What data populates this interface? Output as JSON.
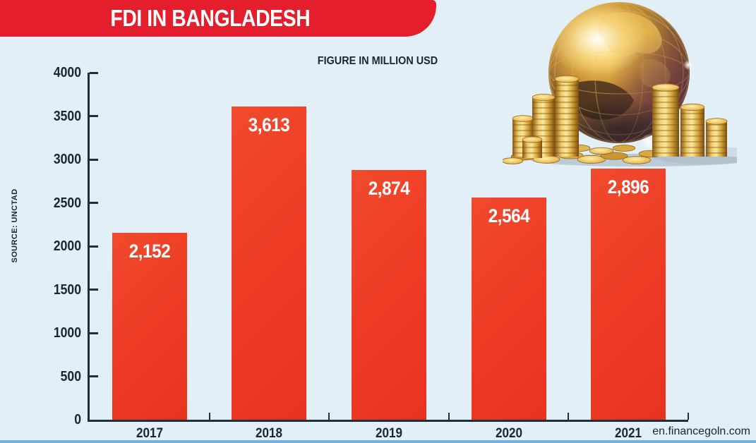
{
  "header": {
    "title": "FDI IN BANGLADESH",
    "subtitle": "FIGURE IN MILLION USD",
    "source_label": "SOURCE: UNCTAD"
  },
  "footer": {
    "website": "en.financegoln.com"
  },
  "illustration": {
    "name": "golden-globe-with-coin-stacks"
  },
  "colors": {
    "background": "#e2eff7",
    "banner_red": "#e41e2c",
    "bar_red": "#ee3a24",
    "text_dark": "#1b2630",
    "axis_dark": "#202e38",
    "bottom_strip_blue": "#73b1df",
    "value_label": "#ffffff"
  },
  "chart_data": {
    "type": "bar",
    "title": "FDI IN BANGLADESH",
    "subtitle": "FIGURE IN MILLION USD",
    "source": "SOURCE: UNCTAD",
    "categories": [
      "2017",
      "2018",
      "2019",
      "2020",
      "2021"
    ],
    "values": [
      2152,
      3613,
      2874,
      2564,
      2896
    ],
    "value_labels": [
      "2,152",
      "3,613",
      "2,874",
      "2,564",
      "2,896"
    ],
    "xlabel": "",
    "ylabel": "",
    "ylim": [
      0,
      4000
    ],
    "yticks": [
      0,
      500,
      1000,
      1500,
      2000,
      2500,
      3000,
      3500,
      4000
    ],
    "grid": false,
    "legend": null,
    "unit": "MILLION USD"
  }
}
